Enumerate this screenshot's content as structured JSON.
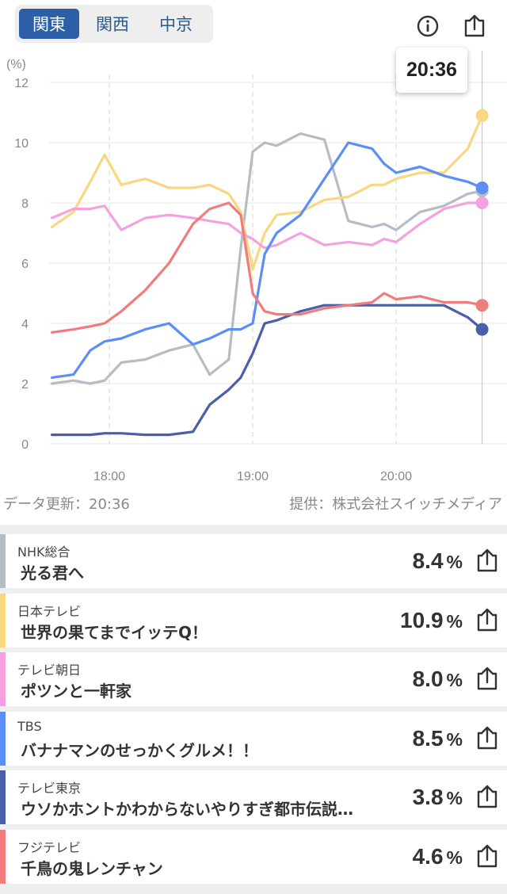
{
  "regions": [
    {
      "label": "関東",
      "active": true
    },
    {
      "label": "関西",
      "active": false
    },
    {
      "label": "中京",
      "active": false
    }
  ],
  "icons": {
    "info": "info-icon",
    "share": "share-icon"
  },
  "tooltip_time": "20:36",
  "chart_data": {
    "type": "line",
    "ylabel": "(%)",
    "ylim": [
      0,
      12
    ],
    "yticks": [
      "0",
      "2",
      "4",
      "6",
      "8",
      "10",
      "12"
    ],
    "xticks": [
      "18:00",
      "19:00",
      "20:00"
    ],
    "x": [
      "17:36",
      "17:45",
      "17:52",
      "17:58",
      "18:05",
      "18:15",
      "18:25",
      "18:35",
      "18:42",
      "18:50",
      "18:55",
      "19:00",
      "19:05",
      "19:10",
      "19:20",
      "19:30",
      "19:40",
      "19:50",
      "19:55",
      "20:00",
      "20:10",
      "20:20",
      "20:30",
      "20:36"
    ],
    "series": [
      {
        "name": "NHK総合",
        "color": "#b6bcc4",
        "values": [
          2.0,
          2.1,
          2.0,
          2.1,
          2.7,
          2.8,
          3.1,
          3.3,
          2.3,
          2.8,
          6.5,
          9.7,
          10.0,
          9.9,
          10.3,
          10.1,
          7.4,
          7.2,
          7.3,
          7.1,
          7.7,
          7.9,
          8.3,
          8.4
        ]
      },
      {
        "name": "日本テレビ",
        "color": "#f9d77e",
        "values": [
          7.2,
          7.7,
          8.7,
          9.6,
          8.6,
          8.8,
          8.5,
          8.5,
          8.6,
          8.3,
          7.7,
          5.8,
          7.0,
          7.6,
          7.7,
          8.1,
          8.2,
          8.6,
          8.6,
          8.8,
          9.0,
          9.0,
          9.8,
          10.9
        ]
      },
      {
        "name": "テレビ朝日",
        "color": "#f4a1e0",
        "values": [
          7.5,
          7.8,
          7.8,
          7.9,
          7.1,
          7.5,
          7.6,
          7.5,
          7.4,
          7.3,
          7.0,
          6.8,
          6.5,
          6.6,
          7.0,
          6.6,
          6.7,
          6.6,
          6.8,
          6.7,
          7.3,
          7.8,
          8.0,
          8.0
        ]
      },
      {
        "name": "TBS",
        "color": "#5b8ff5",
        "values": [
          2.2,
          2.3,
          3.1,
          3.4,
          3.5,
          3.8,
          4.0,
          3.3,
          3.5,
          3.8,
          3.8,
          4.0,
          6.3,
          7.0,
          7.6,
          8.8,
          10.0,
          9.8,
          9.3,
          9.0,
          9.2,
          8.9,
          8.7,
          8.5
        ]
      },
      {
        "name": "テレビ東京",
        "color": "#4a5fa7",
        "values": [
          0.3,
          0.3,
          0.3,
          0.35,
          0.35,
          0.3,
          0.3,
          0.4,
          1.3,
          1.8,
          2.2,
          3.0,
          4.0,
          4.1,
          4.4,
          4.6,
          4.6,
          4.6,
          4.6,
          4.6,
          4.6,
          4.6,
          4.2,
          3.8
        ]
      },
      {
        "name": "フジテレビ",
        "color": "#f07c7c",
        "values": [
          3.7,
          3.8,
          3.9,
          4.0,
          4.4,
          5.1,
          6.0,
          7.3,
          7.8,
          8.0,
          7.6,
          5.0,
          4.4,
          4.3,
          4.3,
          4.5,
          4.6,
          4.7,
          5.0,
          4.8,
          4.9,
          4.7,
          4.7,
          4.6
        ]
      }
    ]
  },
  "footer": {
    "updated": "データ更新：20:36",
    "provider": "提供：株式会社スイッチメディア"
  },
  "programs": [
    {
      "channel": "NHK総合",
      "title": "光る君へ",
      "rating": "8.4",
      "unit": "%",
      "color": "#b6bcc4"
    },
    {
      "channel": "日本テレビ",
      "title": "世界の果てまでイッテQ！",
      "rating": "10.9",
      "unit": "%",
      "color": "#f9d77e"
    },
    {
      "channel": "テレビ朝日",
      "title": "ポツンと一軒家",
      "rating": "8.0",
      "unit": "%",
      "color": "#f4a1e0"
    },
    {
      "channel": "TBS",
      "title": "バナナマンのせっかくグルメ！！",
      "rating": "8.5",
      "unit": "%",
      "color": "#5b8ff5"
    },
    {
      "channel": "テレビ東京",
      "title": "ウソかホントかわからないやりすぎ都市伝説…",
      "rating": "3.8",
      "unit": "%",
      "color": "#4a5fa7"
    },
    {
      "channel": "フジテレビ",
      "title": "千鳥の鬼レンチャン",
      "rating": "4.6",
      "unit": "%",
      "color": "#f07c7c"
    }
  ]
}
